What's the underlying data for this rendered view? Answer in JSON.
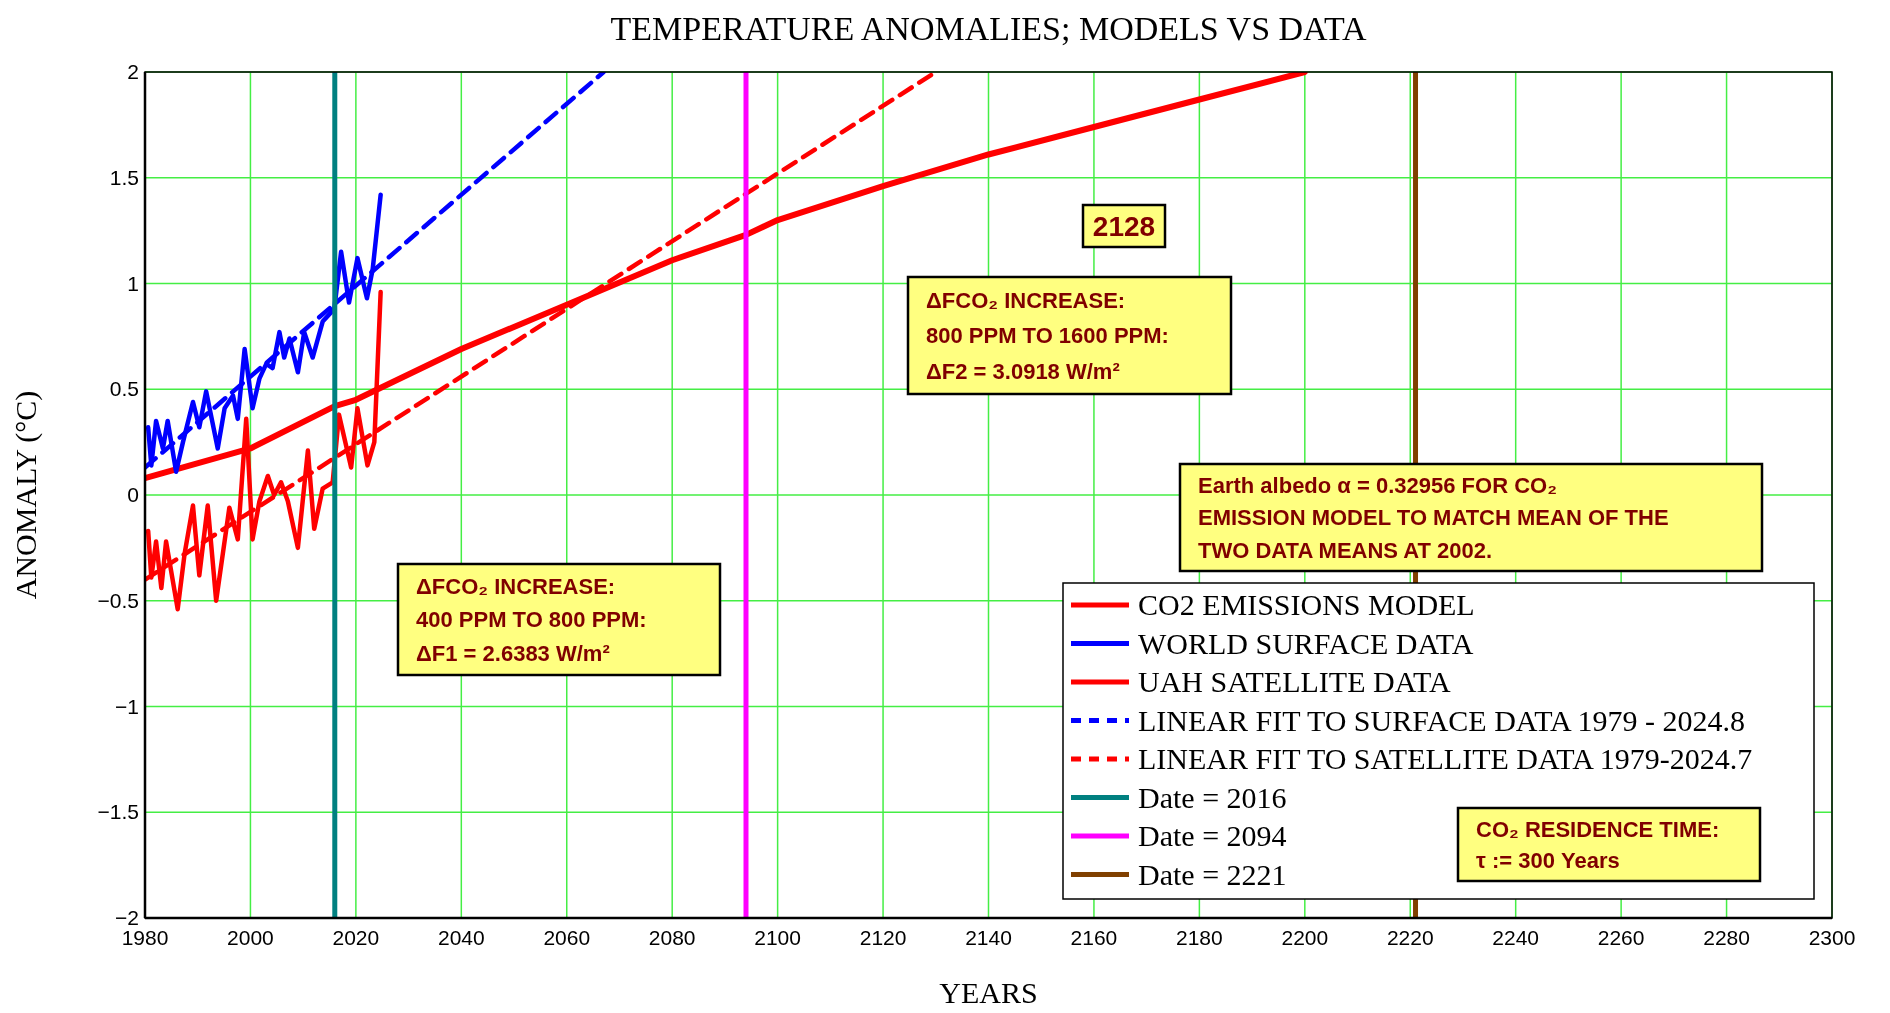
{
  "chart_data": {
    "type": "line",
    "title": "TEMPERATURE ANOMALIES; MODELS VS DATA",
    "xlabel": "YEARS",
    "ylabel": "ANOMALY (°C)",
    "xlim": [
      1980,
      2300
    ],
    "xticks": [
      1980,
      2000,
      2020,
      2040,
      2060,
      2080,
      2100,
      2120,
      2140,
      2160,
      2180,
      2200,
      2220,
      2240,
      2260,
      2280,
      2300
    ],
    "ylim": [
      -2,
      2
    ],
    "yticks": [
      {
        "value": -2,
        "label": "−2"
      },
      {
        "value": -1.5,
        "label": "−1.5"
      },
      {
        "value": -1,
        "label": "−1"
      },
      {
        "value": -0.5,
        "label": "−0.5"
      },
      0,
      0.5,
      1,
      1.5,
      2
    ],
    "grid": true,
    "legend": "bottom right",
    "series": [
      {
        "name": "CO2 EMISSIONS MODEL",
        "color": "#ff0000",
        "line_style": "solid",
        "x": [
          1980,
          2000,
          2016,
          2020,
          2040,
          2060,
          2080,
          2094,
          2100,
          2120,
          2140,
          2160,
          2180,
          2200
        ],
        "values": [
          0.08,
          0.22,
          0.42,
          0.45,
          0.69,
          0.9,
          1.11,
          1.23,
          1.3,
          1.46,
          1.61,
          1.74,
          1.87,
          2.0
        ]
      },
      {
        "name": "WORLD SURFACE DATA",
        "color": "#0000ff",
        "line_style": "solid",
        "x": [
          1980.6,
          1981.2,
          1982.1,
          1983.4,
          1984.3,
          1985.9,
          1987.2,
          1989.1,
          1990.3,
          1991.6,
          1993.8,
          1995.1,
          1996.7,
          1997.6,
          1998.9,
          2000.4,
          2001.7,
          2003.0,
          2004.2,
          2005.5,
          2006.4,
          2007.4,
          2009.0,
          2010.2,
          2011.8,
          2013.7,
          2015.9,
          2017.2,
          2018.7,
          2020.3,
          2022.1,
          2023.2,
          2024.7
        ],
        "values": [
          0.32,
          0.14,
          0.35,
          0.22,
          0.35,
          0.11,
          0.25,
          0.44,
          0.32,
          0.49,
          0.22,
          0.41,
          0.47,
          0.36,
          0.69,
          0.41,
          0.55,
          0.62,
          0.6,
          0.77,
          0.65,
          0.74,
          0.58,
          0.77,
          0.65,
          0.82,
          0.88,
          1.15,
          0.91,
          1.12,
          0.93,
          1.07,
          1.42
        ]
      },
      {
        "name": "UAH SATELLITE DATA",
        "color": "#ff0000",
        "line_style": "solid",
        "x": [
          1980.6,
          1981.2,
          1982.1,
          1983.1,
          1984.0,
          1986.2,
          1987.5,
          1989.1,
          1990.3,
          1991.9,
          1993.5,
          1996.0,
          1997.6,
          1999.2,
          2000.4,
          2001.7,
          2003.3,
          2004.5,
          2005.8,
          2007.1,
          2009.0,
          2010.9,
          2012.1,
          2013.7,
          2015.6,
          2016.8,
          2019.1,
          2020.3,
          2022.2,
          2023.5,
          2024.7
        ],
        "values": [
          -0.17,
          -0.39,
          -0.22,
          -0.44,
          -0.22,
          -0.54,
          -0.28,
          -0.05,
          -0.38,
          -0.05,
          -0.5,
          -0.06,
          -0.21,
          0.36,
          -0.21,
          -0.03,
          0.09,
          0.0,
          0.06,
          -0.03,
          -0.25,
          0.21,
          -0.16,
          0.03,
          0.06,
          0.38,
          0.13,
          0.41,
          0.14,
          0.25,
          0.96
        ]
      },
      {
        "name": "LINEAR FIT TO SURFACE DATA 1979 - 2024.8",
        "color": "#0000ff",
        "line_style": "dashed",
        "x": [
          1980,
          2067
        ],
        "values": [
          0.13,
          2.0
        ]
      },
      {
        "name": "LINEAR FIT TO SATELLITE DATA 1979-2024.7",
        "color": "#ff0000",
        "line_style": "dashed",
        "x": [
          1980,
          2130
        ],
        "values": [
          -0.4,
          2.0
        ]
      },
      {
        "name": "Date = 2016",
        "color": "#008080",
        "line_style": "solid",
        "x": [
          2016,
          2016
        ],
        "values": [
          -2,
          2
        ]
      },
      {
        "name": "Date = 2094",
        "color": "#ff00ff",
        "line_style": "solid",
        "x": [
          2094,
          2094
        ],
        "values": [
          -2,
          2
        ]
      },
      {
        "name": "Date = 2221",
        "color": "#804000",
        "line_style": "solid",
        "x": [
          2221,
          2221
        ],
        "values": [
          -2,
          2
        ]
      }
    ],
    "annotations": [
      "ΔFCO₂ INCREASE:\n400 PPM TO 800 PPM:\nΔF1 = 2.6383 W/m²",
      "2128",
      "ΔFCO₂ INCREASE:\n800 PPM TO 1600 PPM:\nΔF2 = 3.0918 W/m²",
      "Earth albedo α = 0.32956 FOR CO₂\nEMISSION MODEL TO MATCH MEAN OF THE\nTWO DATA MEANS AT 2002.",
      "CO₂ RESIDENCE TIME:\nτ := 300 Years"
    ]
  }
}
